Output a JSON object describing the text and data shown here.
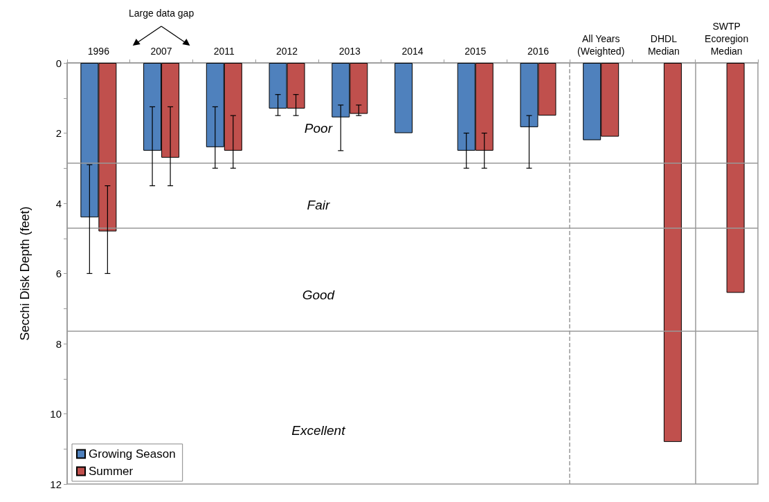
{
  "chart_data": {
    "type": "bar",
    "ylabel": "Secchi Disk Depth (feet)",
    "categories": [
      "1996",
      "2007",
      "2011",
      "2012",
      "2013",
      "2014",
      "2015",
      "2016",
      "All Years\n(Weighted)",
      "DHDL\nMedian",
      "SWTP\nEcoregion\nMedian"
    ],
    "series": [
      {
        "name": "Growing Season",
        "color": "#4f81bd",
        "values": [
          4.4,
          2.5,
          2.4,
          1.3,
          1.55,
          2.0,
          2.5,
          1.83,
          2.2,
          null,
          null
        ],
        "errors": [
          [
            2.9,
            6.0
          ],
          [
            1.25,
            3.5
          ],
          [
            1.25,
            3.0
          ],
          [
            0.9,
            1.5
          ],
          [
            1.2,
            2.5
          ],
          null,
          [
            2.0,
            3.0
          ],
          [
            1.5,
            3.0
          ],
          null,
          null,
          null
        ]
      },
      {
        "name": "Summer",
        "color": "#c0504d",
        "values": [
          4.8,
          2.7,
          2.5,
          1.3,
          1.45,
          null,
          2.5,
          1.5,
          2.1,
          10.8,
          6.55
        ],
        "errors": [
          [
            3.5,
            6.0
          ],
          [
            1.25,
            3.5
          ],
          [
            1.5,
            3.0
          ],
          [
            0.9,
            1.5
          ],
          [
            1.2,
            1.5
          ],
          null,
          [
            2.0,
            3.0
          ],
          null,
          null,
          null,
          null
        ]
      }
    ],
    "ylim": [
      12,
      0
    ],
    "yticks": [
      0,
      {
        "value": 1,
        "label": null
      },
      2,
      {
        "value": 3,
        "label": null
      },
      4,
      {
        "value": 5,
        "label": null
      },
      6,
      {
        "value": 7,
        "label": null
      },
      8,
      {
        "value": 9,
        "label": null
      },
      10,
      {
        "value": 11,
        "label": null
      },
      12
    ],
    "ref_lines": [
      {
        "axis": "y",
        "value": 2.85
      },
      {
        "axis": "y",
        "value": 4.7
      },
      {
        "axis": "y",
        "value": 7.65
      },
      {
        "axis": "x",
        "value": "All Years\n(Weighted)",
        "line_style": "dashed"
      },
      {
        "axis": "x",
        "value": "SWTP\nEcoregion\nMedian",
        "line_style": "solid"
      }
    ],
    "annotations": [
      "Large data gap",
      "Poor",
      "Fair",
      "Good",
      "Excellent"
    ],
    "grid": false,
    "legend": "bottom left"
  }
}
